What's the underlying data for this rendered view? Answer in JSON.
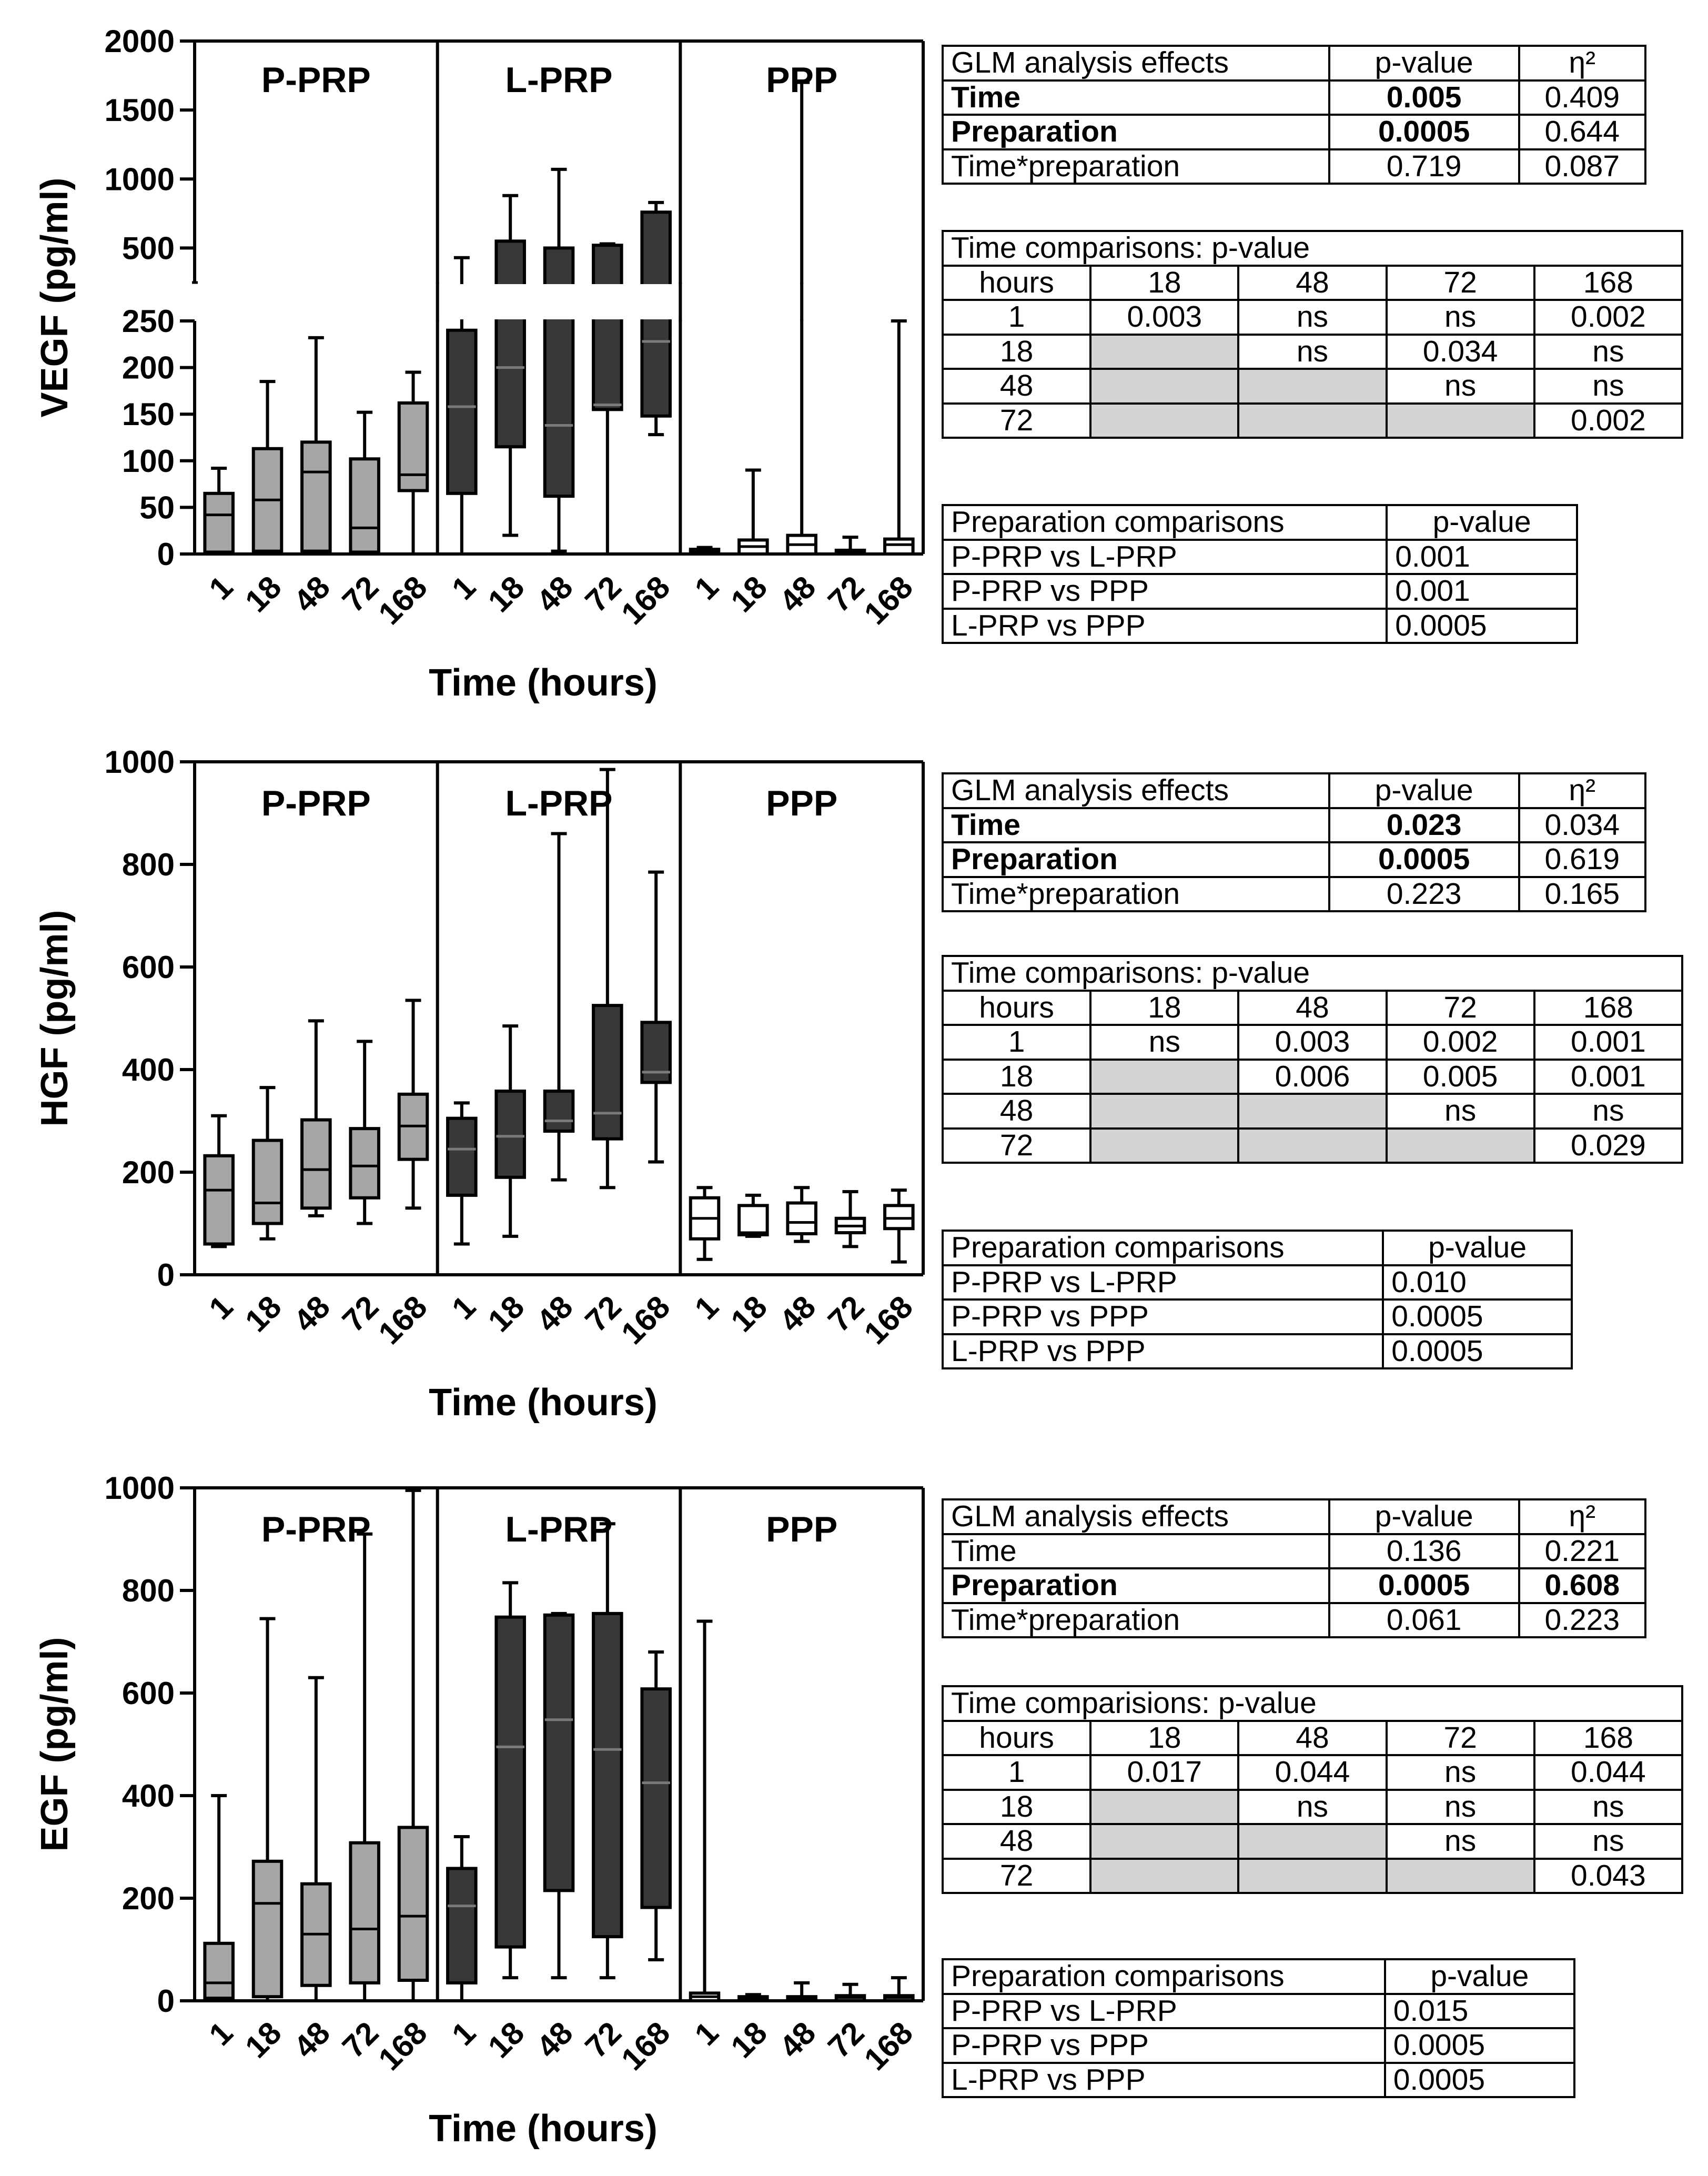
{
  "chart_data": [
    {
      "type": "box",
      "ylabel": "VEGF (pg/ml)",
      "xlabel": "Time (hours)",
      "y_axis_break": true,
      "ylim_lower": [
        0,
        250
      ],
      "ylim_upper": [
        250,
        2000
      ],
      "yticks_lower": [
        0,
        50,
        100,
        150,
        200,
        250
      ],
      "yticks_upper": [
        500,
        1000,
        1500,
        2000
      ],
      "groups": [
        "P-PRP",
        "L-PRP",
        "PPP"
      ],
      "categories": [
        "1",
        "18",
        "48",
        "72",
        "168"
      ],
      "series": [
        {
          "name": "P-PRP",
          "fill": "#a6a6a6",
          "boxes": [
            {
              "min": 0,
              "q1": 2,
              "median": 42,
              "q3": 65,
              "max": 92
            },
            {
              "min": 0,
              "q1": 3,
              "median": 58,
              "q3": 113,
              "max": 185
            },
            {
              "min": 0,
              "q1": 3,
              "median": 88,
              "q3": 120,
              "max": 232
            },
            {
              "min": 0,
              "q1": 2,
              "median": 28,
              "q3": 102,
              "max": 152
            },
            {
              "min": 0,
              "q1": 68,
              "median": 85,
              "q3": 162,
              "max": 195
            }
          ]
        },
        {
          "name": "L-PRP",
          "fill": "#383838",
          "boxes": [
            {
              "min": 0,
              "q1": 65,
              "median": 158,
              "q3": 240,
              "max": 430
            },
            {
              "min": 20,
              "q1": 115,
              "median": 200,
              "q3": 550,
              "max": 880
            },
            {
              "min": 3,
              "q1": 62,
              "median": 138,
              "q3": 500,
              "max": 1070
            },
            {
              "min": 0,
              "q1": 155,
              "median": 160,
              "q3": 520,
              "max": 530
            },
            {
              "min": 128,
              "q1": 148,
              "median": 228,
              "q3": 760,
              "max": 830
            }
          ]
        },
        {
          "name": "PPP",
          "fill": "#ffffff",
          "boxes": [
            {
              "min": 0,
              "q1": 0,
              "median": 3,
              "q3": 5,
              "max": 7
            },
            {
              "min": 0,
              "q1": 0,
              "median": 8,
              "q3": 15,
              "max": 90
            },
            {
              "min": 0,
              "q1": 0,
              "median": 10,
              "q3": 20,
              "max": 1700
            },
            {
              "min": 0,
              "q1": 0,
              "median": 2,
              "q3": 4,
              "max": 18
            },
            {
              "min": 0,
              "q1": 0,
              "median": 10,
              "q3": 16,
              "max": 250
            }
          ]
        }
      ]
    },
    {
      "type": "box",
      "ylabel": "HGF (pg/ml)",
      "xlabel": "Time (hours)",
      "ylim": [
        0,
        1000
      ],
      "yticks": [
        0,
        200,
        400,
        600,
        800,
        1000
      ],
      "groups": [
        "P-PRP",
        "L-PRP",
        "PPP"
      ],
      "categories": [
        "1",
        "18",
        "48",
        "72",
        "168"
      ],
      "series": [
        {
          "name": "P-PRP",
          "fill": "#a6a6a6",
          "boxes": [
            {
              "min": 55,
              "q1": 60,
              "median": 165,
              "q3": 232,
              "max": 310
            },
            {
              "min": 70,
              "q1": 100,
              "median": 140,
              "q3": 262,
              "max": 365
            },
            {
              "min": 115,
              "q1": 130,
              "median": 205,
              "q3": 302,
              "max": 495
            },
            {
              "min": 100,
              "q1": 150,
              "median": 212,
              "q3": 285,
              "max": 455
            },
            {
              "min": 130,
              "q1": 225,
              "median": 290,
              "q3": 352,
              "max": 535
            }
          ]
        },
        {
          "name": "L-PRP",
          "fill": "#383838",
          "boxes": [
            {
              "min": 60,
              "q1": 155,
              "median": 245,
              "q3": 305,
              "max": 335
            },
            {
              "min": 75,
              "q1": 190,
              "median": 270,
              "q3": 358,
              "max": 485
            },
            {
              "min": 185,
              "q1": 280,
              "median": 300,
              "q3": 358,
              "max": 860
            },
            {
              "min": 170,
              "q1": 265,
              "median": 315,
              "q3": 525,
              "max": 985
            },
            {
              "min": 220,
              "q1": 375,
              "median": 395,
              "q3": 492,
              "max": 785
            }
          ]
        },
        {
          "name": "PPP",
          "fill": "#ffffff",
          "boxes": [
            {
              "min": 30,
              "q1": 70,
              "median": 110,
              "q3": 150,
              "max": 170
            },
            {
              "min": 75,
              "q1": 78,
              "median": 82,
              "q3": 135,
              "max": 155
            },
            {
              "min": 65,
              "q1": 80,
              "median": 102,
              "q3": 140,
              "max": 170
            },
            {
              "min": 55,
              "q1": 82,
              "median": 95,
              "q3": 110,
              "max": 162
            },
            {
              "min": 25,
              "q1": 90,
              "median": 110,
              "q3": 135,
              "max": 165
            }
          ]
        }
      ]
    },
    {
      "type": "box",
      "ylabel": "EGF (pg/ml)",
      "xlabel": "Time (hours)",
      "ylim": [
        0,
        1000
      ],
      "yticks": [
        0,
        200,
        400,
        600,
        800,
        1000
      ],
      "groups": [
        "P-PRP",
        "L-PRP",
        "PPP"
      ],
      "categories": [
        "1",
        "18",
        "48",
        "72",
        "168"
      ],
      "series": [
        {
          "name": "P-PRP",
          "fill": "#a6a6a6",
          "boxes": [
            {
              "min": 0,
              "q1": 5,
              "median": 35,
              "q3": 112,
              "max": 400
            },
            {
              "min": 0,
              "q1": 8,
              "median": 190,
              "q3": 272,
              "max": 745
            },
            {
              "min": 0,
              "q1": 30,
              "median": 130,
              "q3": 228,
              "max": 630
            },
            {
              "min": 0,
              "q1": 35,
              "median": 140,
              "q3": 308,
              "max": 910
            },
            {
              "min": 0,
              "q1": 40,
              "median": 165,
              "q3": 338,
              "max": 995
            }
          ]
        },
        {
          "name": "L-PRP",
          "fill": "#383838",
          "boxes": [
            {
              "min": 0,
              "q1": 35,
              "median": 185,
              "q3": 258,
              "max": 320
            },
            {
              "min": 45,
              "q1": 105,
              "median": 495,
              "q3": 748,
              "max": 815
            },
            {
              "min": 45,
              "q1": 215,
              "median": 548,
              "q3": 752,
              "max": 755
            },
            {
              "min": 45,
              "q1": 125,
              "median": 490,
              "q3": 755,
              "max": 930
            },
            {
              "min": 80,
              "q1": 182,
              "median": 425,
              "q3": 608,
              "max": 680
            }
          ]
        },
        {
          "name": "PPP",
          "fill": "#ffffff",
          "boxes": [
            {
              "min": 0,
              "q1": 0,
              "median": 8,
              "q3": 15,
              "max": 740
            },
            {
              "min": 0,
              "q1": 0,
              "median": 4,
              "q3": 8,
              "max": 12
            },
            {
              "min": 0,
              "q1": 0,
              "median": 4,
              "q3": 8,
              "max": 35
            },
            {
              "min": 0,
              "q1": 0,
              "median": 6,
              "q3": 10,
              "max": 32
            },
            {
              "min": 0,
              "q1": 0,
              "median": 6,
              "q3": 10,
              "max": 45
            }
          ]
        }
      ]
    }
  ],
  "tables": [
    {
      "glm": {
        "header": [
          "GLM analysis effects",
          "p-value",
          "η²"
        ],
        "rows": [
          {
            "cells": [
              "Time",
              "0.005",
              "0.409"
            ],
            "bold": [
              true,
              true,
              false
            ]
          },
          {
            "cells": [
              "Preparation",
              "0.0005",
              "0.644"
            ],
            "bold": [
              true,
              true,
              false
            ]
          },
          {
            "cells": [
              "Time*preparation",
              "0.719",
              "0.087"
            ],
            "bold": [
              false,
              false,
              false
            ]
          }
        ]
      },
      "time": {
        "title": "Time comparisons: p-value",
        "header": [
          "hours",
          "18",
          "48",
          "72",
          "168"
        ],
        "rows": [
          [
            "1",
            "0.003",
            "ns",
            "ns",
            "0.002"
          ],
          [
            "18",
            "",
            "ns",
            "0.034",
            "ns"
          ],
          [
            "48",
            "",
            "",
            "ns",
            "ns"
          ],
          [
            "72",
            "",
            "",
            "",
            "0.002"
          ]
        ]
      },
      "prep": {
        "header": [
          "Preparation comparisons",
          "p-value"
        ],
        "rows": [
          [
            "P-PRP  vs L-PRP",
            "0.001"
          ],
          [
            "P-PRP vs PPP",
            "0.001"
          ],
          [
            "L-PRP vs PPP",
            "0.0005"
          ]
        ]
      }
    },
    {
      "glm": {
        "header": [
          "GLM analysis effects",
          "p-value",
          "η²"
        ],
        "rows": [
          {
            "cells": [
              "Time",
              "0.023",
              "0.034"
            ],
            "bold": [
              true,
              true,
              false
            ]
          },
          {
            "cells": [
              "Preparation",
              "0.0005",
              "0.619"
            ],
            "bold": [
              true,
              true,
              false
            ]
          },
          {
            "cells": [
              "Time*preparation",
              "0.223",
              "0.165"
            ],
            "bold": [
              false,
              false,
              false
            ]
          }
        ]
      },
      "time": {
        "title": "Time comparisons: p-value",
        "header": [
          "hours",
          "18",
          "48",
          "72",
          "168"
        ],
        "rows": [
          [
            "1",
            "ns",
            "0.003",
            "0.002",
            "0.001"
          ],
          [
            "18",
            "",
            "0.006",
            "0.005",
            "0.001"
          ],
          [
            "48",
            "",
            "",
            "ns",
            "ns"
          ],
          [
            "72",
            "",
            "",
            "",
            "0.029"
          ]
        ]
      },
      "prep": {
        "header": [
          "Preparation comparisons",
          "p-value"
        ],
        "rows": [
          [
            "P-PRP  vs L-PRP",
            "0.010"
          ],
          [
            "P-PRP vs PPP",
            "0.0005"
          ],
          [
            "L-PRP vs PPP",
            "0.0005"
          ]
        ]
      }
    },
    {
      "glm": {
        "header": [
          "GLM analysis effects",
          "p-value",
          "η²"
        ],
        "rows": [
          {
            "cells": [
              "Time",
              "0.136",
              "0.221"
            ],
            "bold": [
              false,
              false,
              false
            ]
          },
          {
            "cells": [
              "Preparation",
              "0.0005",
              "0.608"
            ],
            "bold": [
              true,
              true,
              true
            ]
          },
          {
            "cells": [
              "Time*preparation",
              "0.061",
              "0.223"
            ],
            "bold": [
              false,
              false,
              false
            ]
          }
        ]
      },
      "time": {
        "title": "Time comparisions: p-value",
        "header": [
          "hours",
          "18",
          "48",
          "72",
          "168"
        ],
        "rows": [
          [
            "1",
            "0.017",
            "0.044",
            "ns",
            "0.044"
          ],
          [
            "18",
            "",
            "ns",
            "ns",
            "ns"
          ],
          [
            "48",
            "",
            "",
            "ns",
            "ns"
          ],
          [
            "72",
            "",
            "",
            "",
            "0.043"
          ]
        ]
      },
      "prep": {
        "header": [
          "Preparation comparisons",
          "p-value"
        ],
        "rows": [
          [
            "P-PRP  vs L-PRP",
            "0.015"
          ],
          [
            "P-PRP vs PPP",
            "0.0005"
          ],
          [
            "L-PRP vs PPP",
            "0.0005"
          ]
        ]
      }
    }
  ]
}
